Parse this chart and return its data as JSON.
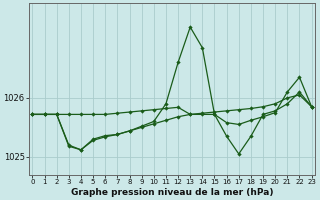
{
  "xlabel": "Graphe pression niveau de la mer (hPa)",
  "background_color": "#cce8e8",
  "plot_bg_color": "#cce8e8",
  "grid_color": "#aacccc",
  "line_color": "#1a5c1a",
  "x_values": [
    0,
    1,
    2,
    3,
    4,
    5,
    6,
    7,
    8,
    9,
    10,
    11,
    12,
    13,
    14,
    15,
    16,
    17,
    18,
    19,
    20,
    21,
    22,
    23
  ],
  "line1": [
    1025.72,
    1025.72,
    1025.72,
    1025.72,
    1025.72,
    1025.72,
    1025.72,
    1025.74,
    1025.76,
    1025.78,
    1025.8,
    1025.82,
    1025.84,
    1025.72,
    1025.74,
    1025.76,
    1025.78,
    1025.8,
    1025.82,
    1025.85,
    1025.9,
    1026.0,
    1026.05,
    1025.85
  ],
  "line2": [
    1025.72,
    1025.72,
    1025.72,
    1025.18,
    1025.12,
    1025.28,
    1025.34,
    1025.38,
    1025.44,
    1025.52,
    1025.6,
    1025.9,
    1026.6,
    1027.2,
    1026.85,
    1025.72,
    1025.58,
    1025.55,
    1025.62,
    1025.68,
    1025.75,
    1026.1,
    1026.35,
    1025.85
  ],
  "line3": [
    1025.72,
    1025.72,
    1025.72,
    1025.2,
    1025.12,
    1025.3,
    1025.36,
    1025.38,
    1025.44,
    1025.5,
    1025.56,
    1025.62,
    1025.68,
    1025.72,
    1025.72,
    1025.72,
    1025.35,
    1025.05,
    1025.35,
    1025.72,
    1025.78,
    1025.9,
    1026.1,
    1025.85
  ],
  "ylim": [
    1024.7,
    1027.45
  ],
  "yticks": [
    1025.0,
    1026.0
  ],
  "xlim": [
    -0.3,
    23.3
  ]
}
